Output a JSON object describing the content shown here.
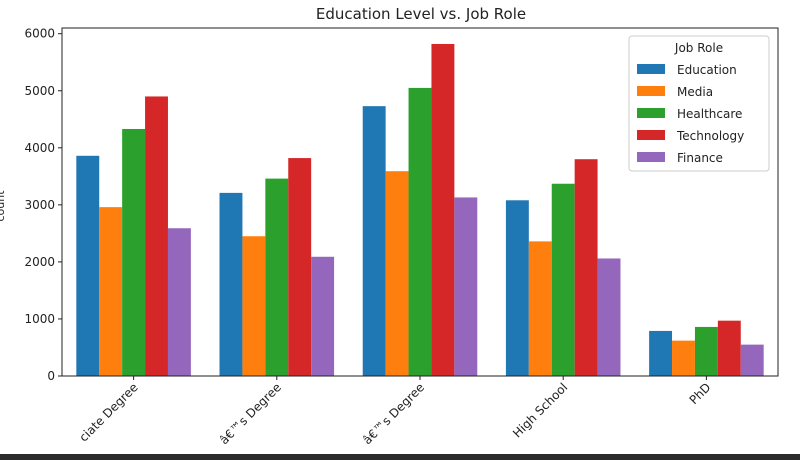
{
  "chart_data": {
    "type": "bar",
    "title": "Education Level vs. Job Role",
    "xlabel": "",
    "ylabel": "count",
    "ylim": [
      0,
      6100
    ],
    "yticks": [
      0,
      1000,
      2000,
      3000,
      4000,
      5000,
      6000
    ],
    "categories": [
      "Associate Degree",
      "Bachelorâ€™s Degree",
      "Masterâ€™s Degree",
      "High School",
      "PhD"
    ],
    "category_labels_visible": [
      "ciate Degree",
      "â€™s Degree",
      "â€™s Degree",
      "High School",
      "PhD"
    ],
    "legend": {
      "title": "Job Role",
      "placement": "upper-right"
    },
    "series": [
      {
        "name": "Education",
        "color": "#1f77b4",
        "values": [
          3860,
          3210,
          4730,
          3080,
          790
        ]
      },
      {
        "name": "Media",
        "color": "#ff7f0e",
        "values": [
          2960,
          2450,
          3590,
          2360,
          620
        ]
      },
      {
        "name": "Healthcare",
        "color": "#2ca02c",
        "values": [
          4330,
          3460,
          5050,
          3370,
          860
        ]
      },
      {
        "name": "Technology",
        "color": "#d62728",
        "values": [
          4900,
          3820,
          5820,
          3800,
          970
        ]
      },
      {
        "name": "Finance",
        "color": "#9467bd",
        "values": [
          2590,
          2090,
          3130,
          2060,
          550
        ]
      }
    ]
  }
}
